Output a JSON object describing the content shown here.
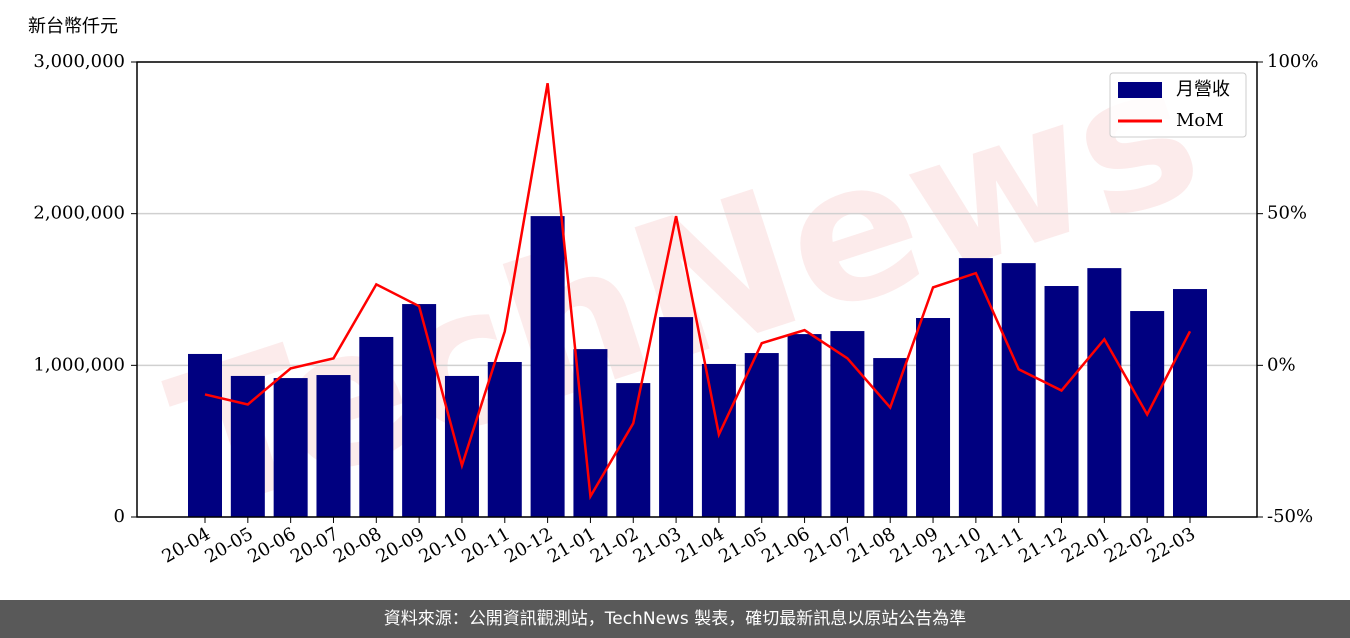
{
  "chart_data": {
    "type": "combo",
    "y_label": "新台幣仟元",
    "watermark": "TechNews",
    "footer": "資料來源：公開資訊觀測站，TechNews 製表，確切最新訊息以原站公告為準",
    "categories": [
      "20-04",
      "20-05",
      "20-06",
      "20-07",
      "20-08",
      "20-09",
      "20-10",
      "20-11",
      "20-12",
      "21-01",
      "21-02",
      "21-03",
      "21-04",
      "21-05",
      "21-06",
      "21-07",
      "21-08",
      "21-09",
      "21-10",
      "21-11",
      "21-12",
      "22-01",
      "22-02",
      "22-03"
    ],
    "series": [
      {
        "name": "月營收",
        "type": "bar",
        "color": "#000080",
        "axis": "y",
        "values": [
          1075000,
          930000,
          916000,
          936000,
          1187000,
          1404000,
          930000,
          1022000,
          1984000,
          1107000,
          883000,
          1318000,
          1009000,
          1081000,
          1206000,
          1226000,
          1048000,
          1312000,
          1707000,
          1674000,
          1523000,
          1641000,
          1358000,
          1503000
        ]
      },
      {
        "name": "MoM",
        "type": "line",
        "color": "#ff0000",
        "axis": "y2",
        "values": [
          -9.6,
          -12.9,
          -1,
          2.3,
          26.7,
          19.5,
          -33,
          11.2,
          93,
          -43.2,
          -19.1,
          49.2,
          -22.8,
          7.3,
          11.6,
          2.3,
          -13.9,
          25.7,
          30.4,
          -1.3,
          -8.3,
          8.6,
          -16.2,
          11.2
        ]
      }
    ],
    "ylim": [
      0,
      3000000
    ],
    "yticks": [
      0,
      {
        "value": 1000000,
        "label": "1,000,000"
      },
      {
        "value": 2000000,
        "label": "2,000,000"
      },
      {
        "value": 3000000,
        "label": "3,000,000"
      }
    ],
    "y2lim": [
      -50,
      100
    ],
    "y2ticks": [
      {
        "value": -50,
        "label": "-50%"
      },
      {
        "value": 0,
        "label": "0%"
      },
      {
        "value": 50,
        "label": "50%"
      },
      {
        "value": 100,
        "label": "100%"
      }
    ],
    "grid": true,
    "legend": "upper right"
  }
}
